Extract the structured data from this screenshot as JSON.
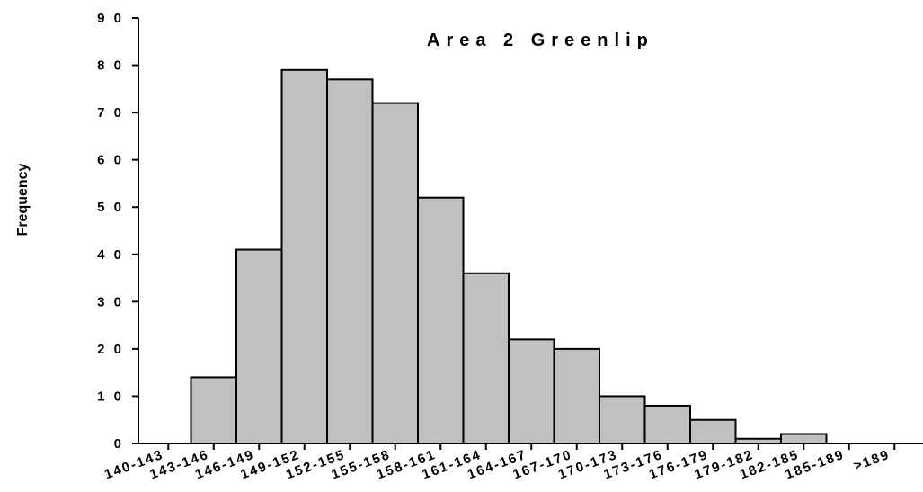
{
  "chart_data": {
    "type": "bar",
    "title": "Area 2 Greenlip",
    "xlabel": "",
    "ylabel": "Frequency",
    "ylim": [
      0,
      90
    ],
    "yticks": [
      "0",
      "1 0",
      "2 0",
      "3 0",
      "4 0",
      "5 0",
      "6 0",
      "7 0",
      "8 0",
      "9 0"
    ],
    "categories": [
      "140-143",
      "143-146",
      "146-149",
      "149-152",
      "152-155",
      "155-158",
      "158-161",
      "161-164",
      "164-167",
      "167-170",
      "170-173",
      "173-176",
      "176-179",
      "179-182",
      "182-185",
      "185-189",
      ">189"
    ],
    "values": [
      0,
      14,
      41,
      79,
      77,
      72,
      52,
      36,
      22,
      20,
      10,
      8,
      5,
      1,
      2,
      0,
      0
    ],
    "grid": false,
    "legend": "none",
    "bar_color": "#c0c0c0",
    "edge_color": "#000000"
  }
}
